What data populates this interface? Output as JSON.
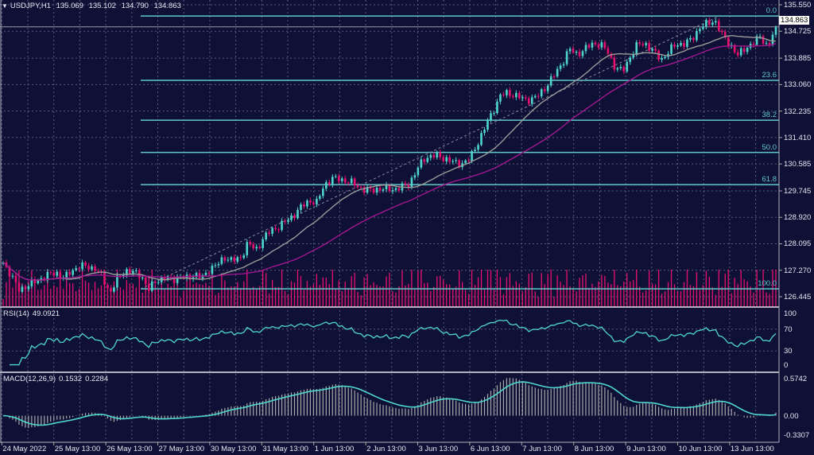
{
  "header": {
    "symbol": "USDJPY,H1",
    "open": "135.069",
    "high": "135.102",
    "low": "134.790",
    "close": "134.863"
  },
  "current_price": "134.863",
  "colors": {
    "background": "#0f1035",
    "bull": "#4fd6cc",
    "bear": "#e8106e",
    "ma_fast": "#9a9a9a",
    "ma_slow": "#a0188f",
    "fib": "#5fc8c8",
    "rsi": "#4fd6cc",
    "macd_signal": "#4fd6cc",
    "macd_hist": "#a8a8a8",
    "volume": "#e8106e",
    "grid": "#5a5c7a"
  },
  "rsi": {
    "label": "RSI(14)",
    "value": "49.0921",
    "ticks": [
      "100",
      "70",
      "30",
      "0"
    ]
  },
  "macd": {
    "label": "MACD(12,26,9)",
    "main": "0.1532",
    "signal": "0.2284",
    "ticks": [
      "0.5742",
      "0.00",
      "-0.3307"
    ]
  },
  "chart_data": {
    "type": "candlestick",
    "symbol": "USDJPY",
    "timeframe": "H1",
    "ylim": [
      126.445,
      135.55
    ],
    "y_ticks": [
      "135.550",
      "134.725",
      "133.885",
      "133.060",
      "132.235",
      "131.410",
      "130.585",
      "129.745",
      "128.920",
      "128.095",
      "127.270",
      "126.445"
    ],
    "x_ticks": [
      "24 May 2022",
      "25 May 13:00",
      "26 May 13:00",
      "27 May 13:00",
      "30 May 13:00",
      "31 May 13:00",
      "1 Jun 13:00",
      "2 Jun 13:00",
      "3 Jun 13:00",
      "6 Jun 13:00",
      "7 Jun 13:00",
      "8 Jun 13:00",
      "9 Jun 13:00",
      "10 Jun 13:00",
      "13 Jun 13:00"
    ],
    "closes": [
      127.51,
      127.14,
      126.65,
      126.77,
      126.89,
      127.02,
      127.14,
      127.19,
      127.02,
      127.27,
      127.39,
      127.39,
      127.32,
      127.02,
      126.57,
      127.02,
      127.27,
      127.19,
      127.14,
      126.65,
      126.97,
      127.02,
      126.97,
      127.07,
      127.02,
      127.14,
      127.02,
      127.32,
      127.44,
      127.69,
      127.56,
      127.64,
      128.13,
      127.89,
      128.26,
      128.51,
      128.63,
      128.8,
      129.0,
      129.25,
      129.45,
      129.37,
      129.95,
      130.12,
      130.12,
      130.04,
      129.95,
      129.8,
      129.75,
      129.82,
      129.8,
      129.8,
      129.85,
      129.95,
      130.37,
      130.74,
      130.86,
      130.81,
      130.74,
      130.61,
      130.61,
      130.74,
      131.23,
      131.73,
      132.23,
      132.72,
      132.8,
      132.72,
      132.6,
      132.6,
      132.72,
      133.02,
      133.34,
      133.71,
      134.16,
      134.01,
      134.16,
      134.33,
      134.33,
      134.09,
      133.59,
      133.47,
      133.96,
      134.33,
      134.33,
      134.09,
      133.84,
      134.09,
      134.33,
      134.33,
      134.46,
      134.83,
      134.95,
      135.08,
      134.58,
      134.33,
      133.96,
      134.21,
      134.33,
      134.58,
      134.21,
      134.863
    ],
    "moving_averages": [
      {
        "type": "SMA",
        "period": 20,
        "color": "#9a9a9a"
      },
      {
        "type": "SMA",
        "period": 50,
        "color": "#a0188f"
      }
    ],
    "fibonacci": {
      "high": 135.2,
      "low": 126.69,
      "levels": [
        {
          "ratio": 0.0,
          "label": "0.0"
        },
        {
          "ratio": 0.236,
          "label": "23.6"
        },
        {
          "ratio": 0.382,
          "label": "38.2"
        },
        {
          "ratio": 0.5,
          "label": "50.0"
        },
        {
          "ratio": 0.618,
          "label": "61.8"
        },
        {
          "ratio": 1.0,
          "label": "100.0"
        }
      ]
    },
    "rsi_range": [
      0,
      100
    ],
    "macd_range": [
      -0.3307,
      0.5742
    ],
    "grid": true
  }
}
